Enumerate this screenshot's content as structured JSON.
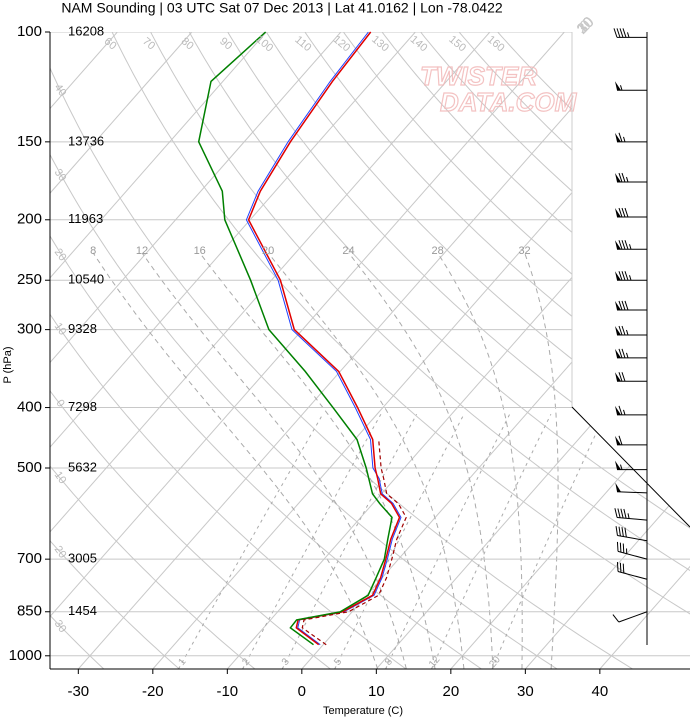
{
  "chart_data": {
    "type": "skewt",
    "title": "NAM Sounding | 03 UTC Sat 07 Dec 2013 | Lat 41.0162 | Lon -78.0422",
    "xlabel": "Temperature (C)",
    "ylabel": "P (hPa)",
    "watermark": [
      "TWISTER",
      "DATA.COM"
    ],
    "xlim": [
      -33.8,
      52.1
    ],
    "xticks": [
      -30,
      -20,
      -10,
      0,
      10,
      20,
      30,
      40
    ],
    "ylim": [
      1050,
      100
    ],
    "log_y": true,
    "yticks": [
      100,
      150,
      200,
      250,
      300,
      400,
      500,
      700,
      850,
      1000
    ],
    "height_labels": [
      16208,
      13736,
      11963,
      10540,
      9328,
      7298,
      5632,
      3005,
      1454,
      null
    ],
    "isotherms": [
      -110,
      -100,
      -90,
      -80,
      -70,
      -60,
      -50,
      -40,
      -30,
      -20,
      -10,
      0,
      10,
      20,
      30,
      40
    ],
    "isotherm_labels": [
      {
        "value": -30,
        "label": "30"
      },
      {
        "value": -20,
        "label": "20"
      },
      {
        "value": -10,
        "label": "10"
      },
      0,
      10,
      20,
      30
    ],
    "dry_adiabats": [
      {
        "value": -30,
        "label": "30"
      },
      {
        "value": -20,
        "label": "20"
      },
      {
        "value": -10,
        "label": "10"
      },
      0,
      10,
      20,
      30,
      40,
      60,
      70,
      80,
      90,
      100,
      110,
      120,
      130,
      140,
      150,
      160
    ],
    "moist_adiabats": [
      8,
      12,
      16,
      20,
      24,
      28,
      32
    ],
    "mixing_ratios": [
      1,
      2,
      3,
      5,
      8,
      12,
      20
    ],
    "levels": [
      960,
      902,
      876,
      850,
      800,
      750,
      700,
      650,
      600,
      570,
      550,
      520,
      500,
      450,
      400,
      350,
      300,
      250,
      200,
      180,
      150,
      120,
      100
    ],
    "series": [
      {
        "color": "#2040ff",
        "width": 1,
        "dash": false,
        "values": [
          -0.4,
          -5.4,
          -6.1,
          -1.1,
          1.0,
          0.0,
          -1.5,
          -3.2,
          -4.6,
          -7.3,
          -9.9,
          -12.1,
          -14.2,
          -17.9,
          -23.7,
          -30.5,
          -41.4,
          -49.1,
          -60.5,
          -62.3,
          -64.1,
          -65.6,
          -66.3
        ]
      },
      {
        "color": "#e00000",
        "width": 1.5,
        "dash": false,
        "values": [
          -0.6,
          -5.6,
          -6.3,
          -1.3,
          0.8,
          -0.2,
          -1.7,
          -3.4,
          -4.8,
          -7.5,
          -10.1,
          -12.3,
          -13.9,
          -17.6,
          -23.4,
          -30.2,
          -41.1,
          -48.8,
          -60.2,
          -62.0,
          -63.8,
          -65.3,
          -66.0
        ]
      },
      {
        "color": "#a00000",
        "width": 1.2,
        "dash": true,
        "values": [
          0.4,
          -4.8,
          -5.5,
          -0.5,
          1.6,
          0.6,
          -0.9,
          -2.6,
          -3.9,
          -6.6,
          -9.3,
          -11.5,
          -13.1,
          -16.8,
          null,
          null,
          null,
          null,
          null,
          null,
          null,
          null,
          null
        ]
      },
      {
        "color": "#008000",
        "width": 1.5,
        "dash": false,
        "values": [
          -1.3,
          -6.4,
          -6.5,
          -1.6,
          0.2,
          -0.8,
          -1.9,
          -3.8,
          -5.8,
          -9.1,
          -11.2,
          -13.5,
          -15.1,
          -19.7,
          -26.7,
          -34.7,
          -44.5,
          -52.8,
          -63.4,
          -67.1,
          -76.1,
          -81.6,
          -80.1
        ]
      }
    ],
    "winds": {
      "levels": [
        102,
        124,
        150,
        174,
        198,
        223,
        250,
        279,
        306,
        333,
        363,
        411,
        459,
        503,
        548,
        606,
        654,
        700,
        754,
        850
      ],
      "direction": [
        270,
        270,
        270,
        270,
        270,
        270,
        270,
        270,
        270,
        270,
        270,
        270,
        270,
        270,
        272,
        275,
        280,
        285,
        285,
        250
      ],
      "speed": [
        45,
        55,
        65,
        75,
        80,
        85,
        85,
        80,
        75,
        75,
        70,
        65,
        60,
        55,
        50,
        45,
        40,
        35,
        30,
        10
      ]
    }
  }
}
